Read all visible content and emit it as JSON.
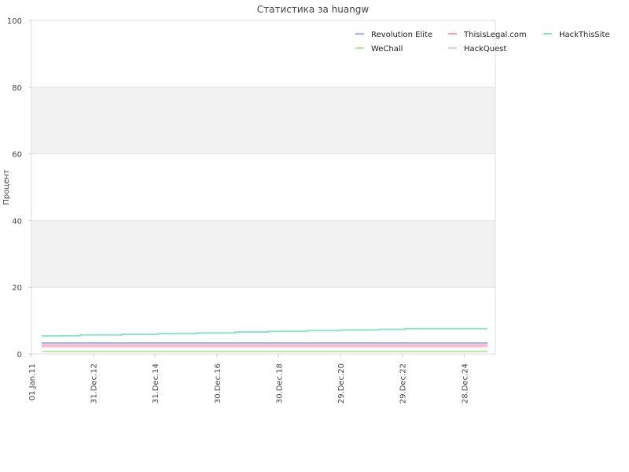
{
  "chart_data": {
    "type": "line",
    "title": "Статистика за huangw",
    "ylabel": "Процент",
    "xlabel": "",
    "ylim": [
      0,
      100
    ],
    "yticks": [
      0,
      20,
      40,
      60,
      80,
      100
    ],
    "grid": "horizontal bands",
    "band_color": "#f2f2f2",
    "legend_position": "top-right",
    "x_tick_labels": [
      "01.Jan.11",
      "31.Dec.12",
      "31.Dec.14",
      "30.Dec.16",
      "30.Dec.18",
      "29.Dec.20",
      "29.Dec.22",
      "28.Dec.24"
    ],
    "x_range": [
      "2011-01-01",
      "2026-01-01"
    ],
    "series": [
      {
        "name": "Revolution Elite",
        "color": "#9db4f2",
        "points": [
          [
            "2011-05-01",
            3.3
          ],
          [
            "2025-10-01",
            3.3
          ]
        ]
      },
      {
        "name": "ThisisLegal.com",
        "color": "#f2a6b3",
        "points": [
          [
            "2011-05-01",
            2.7
          ],
          [
            "2025-10-01",
            2.7
          ]
        ]
      },
      {
        "name": "HackThisSite",
        "color": "#8fe3c9",
        "points": [
          [
            "2011-05-01",
            5.4
          ],
          [
            "2012-01-01",
            5.5
          ],
          [
            "2012-08-01",
            5.7
          ],
          [
            "2013-12-01",
            5.9
          ],
          [
            "2015-02-01",
            6.1
          ],
          [
            "2016-05-01",
            6.3
          ],
          [
            "2017-08-01",
            6.6
          ],
          [
            "2018-09-01",
            6.8
          ],
          [
            "2019-12-01",
            7.0
          ],
          [
            "2021-01-01",
            7.2
          ],
          [
            "2022-04-01",
            7.4
          ],
          [
            "2023-02-01",
            7.6
          ],
          [
            "2025-10-01",
            7.6
          ]
        ]
      },
      {
        "name": "WeChall",
        "color": "#b5e8a6",
        "points": [
          [
            "2011-05-01",
            0.8
          ],
          [
            "2025-10-01",
            0.8
          ]
        ]
      },
      {
        "name": "HackQuest",
        "color": "#f7c4d9",
        "points": [
          [
            "2011-05-01",
            2.2
          ],
          [
            "2025-10-01",
            2.2
          ]
        ]
      }
    ]
  }
}
